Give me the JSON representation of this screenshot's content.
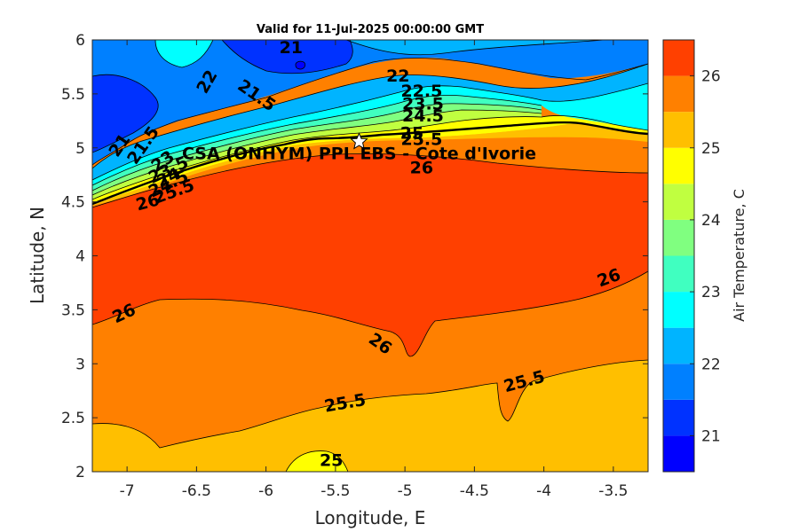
{
  "title": "Valid for 11-Jul-2025 00:00:00 GMT",
  "xlabel": "Longitude, E",
  "ylabel": "Latitude, N",
  "colorbar_label": "Air Temperature, C",
  "station": {
    "label": "CSA (ONHYM) PPL EBS - Cote d'Ivorie",
    "lon": -5.33,
    "lat": 5.06,
    "marker": "star-icon"
  },
  "chart_data": {
    "type": "heatmap",
    "xlim": [
      -7.25,
      -3.25
    ],
    "ylim": [
      2,
      6
    ],
    "xticks": [
      -7,
      -6.5,
      -6,
      -5.5,
      -5,
      -4.5,
      -4,
      -3.5
    ],
    "yticks": [
      2,
      2.5,
      3,
      3.5,
      4,
      4.5,
      5,
      5.5,
      6
    ],
    "clim": [
      20.5,
      26.5
    ],
    "colorbar_ticks": [
      21,
      22,
      23,
      24,
      25,
      26
    ],
    "levels": [
      {
        "min": 20.5,
        "max": 21.0,
        "color": "#0000ff"
      },
      {
        "min": 21.0,
        "max": 21.5,
        "color": "#0032ff"
      },
      {
        "min": 21.5,
        "max": 22.0,
        "color": "#0080ff"
      },
      {
        "min": 22.0,
        "max": 22.5,
        "color": "#00b4ff"
      },
      {
        "min": 22.5,
        "max": 23.0,
        "color": "#00ffff"
      },
      {
        "min": 23.0,
        "max": 23.5,
        "color": "#40ffc0"
      },
      {
        "min": 23.5,
        "max": 24.0,
        "color": "#80ff80"
      },
      {
        "min": 24.0,
        "max": 24.5,
        "color": "#c0ff40"
      },
      {
        "min": 24.5,
        "max": 25.0,
        "color": "#ffff00"
      },
      {
        "min": 25.0,
        "max": 25.5,
        "color": "#ffbf00"
      },
      {
        "min": 25.5,
        "max": 26.0,
        "color": "#ff8000"
      },
      {
        "min": 26.0,
        "max": 26.5,
        "color": "#ff4000"
      },
      {
        "min": 26.5,
        "max": 27.0,
        "color": "#ff0000"
      }
    ],
    "contour_labels": [
      {
        "text": "21",
        "lon": -5.82,
        "lat": 5.92,
        "angle": 0
      },
      {
        "text": "22",
        "lon": -6.42,
        "lat": 5.61,
        "angle": -60
      },
      {
        "text": "21.5",
        "lon": -6.07,
        "lat": 5.48,
        "angle": 35
      },
      {
        "text": "22",
        "lon": -5.05,
        "lat": 5.66,
        "angle": 0
      },
      {
        "text": "22.5",
        "lon": -4.88,
        "lat": 5.52,
        "angle": 0
      },
      {
        "text": "23.5",
        "lon": -4.87,
        "lat": 5.4,
        "angle": 0
      },
      {
        "text": "24.5",
        "lon": -4.87,
        "lat": 5.29,
        "angle": 0
      },
      {
        "text": "25",
        "lon": -4.95,
        "lat": 5.13,
        "angle": 0
      },
      {
        "text": "25.5",
        "lon": -4.88,
        "lat": 5.07,
        "angle": 0
      },
      {
        "text": "26",
        "lon": -4.88,
        "lat": 4.81,
        "angle": 0
      },
      {
        "text": "21",
        "lon": -7.05,
        "lat": 5.02,
        "angle": -55
      },
      {
        "text": "21.5",
        "lon": -6.88,
        "lat": 5.02,
        "angle": -55
      },
      {
        "text": "23",
        "lon": -6.74,
        "lat": 4.87,
        "angle": -35
      },
      {
        "text": "23.5",
        "lon": -6.7,
        "lat": 4.79,
        "angle": -25
      },
      {
        "text": "24",
        "lon": -6.7,
        "lat": 4.72,
        "angle": -25
      },
      {
        "text": "24.5",
        "lon": -6.7,
        "lat": 4.66,
        "angle": -25
      },
      {
        "text": "25.5",
        "lon": -6.66,
        "lat": 4.59,
        "angle": -20
      },
      {
        "text": "26",
        "lon": -6.85,
        "lat": 4.49,
        "angle": -15
      },
      {
        "text": "26",
        "lon": -7.02,
        "lat": 3.46,
        "angle": -25
      },
      {
        "text": "26",
        "lon": -5.18,
        "lat": 3.18,
        "angle": 35
      },
      {
        "text": "26",
        "lon": -3.53,
        "lat": 3.79,
        "angle": -20
      },
      {
        "text": "25.5",
        "lon": -5.43,
        "lat": 2.63,
        "angle": -10
      },
      {
        "text": "25.5",
        "lon": -4.14,
        "lat": 2.83,
        "angle": -15
      },
      {
        "text": "25",
        "lon": -5.53,
        "lat": 2.1,
        "angle": 0
      }
    ]
  }
}
